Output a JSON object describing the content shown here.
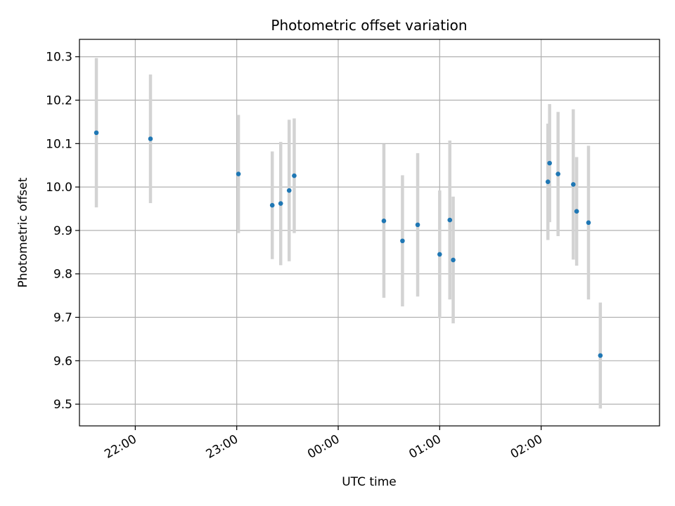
{
  "chart_data": {
    "type": "scatter",
    "title": "Photometric offset variation",
    "xlabel": "UTC time",
    "ylabel": "Photometric offset",
    "grid": true,
    "legend": "none",
    "x_axis_type": "time",
    "xlim": [
      "21:27",
      "03:10"
    ],
    "ylim": [
      9.45,
      10.34
    ],
    "x_ticks": [
      "22:00",
      "23:00",
      "00:00",
      "01:00",
      "02:00"
    ],
    "y_ticks": [
      "9.5",
      "9.6",
      "9.7",
      "9.8",
      "9.9",
      "10.0",
      "10.1",
      "10.2",
      "10.3"
    ],
    "colors": {
      "marker": "#1f77b4",
      "errorbar": "#d3d3d3",
      "grid": "#b0b0b0"
    },
    "series": [
      {
        "points": [
          {
            "x": "21:37",
            "y": 10.125,
            "err": 0.172
          },
          {
            "x": "22:09",
            "y": 10.111,
            "err": 0.148
          },
          {
            "x": "23:01",
            "y": 10.03,
            "err": 0.136
          },
          {
            "x": "23:21",
            "y": 9.958,
            "err": 0.124
          },
          {
            "x": "23:26",
            "y": 9.962,
            "err": 0.142
          },
          {
            "x": "23:31",
            "y": 9.992,
            "err": 0.163
          },
          {
            "x": "23:34",
            "y": 10.026,
            "err": 0.132
          },
          {
            "x": "00:27",
            "y": 9.922,
            "err": 0.177
          },
          {
            "x": "00:38",
            "y": 9.876,
            "err": 0.151
          },
          {
            "x": "00:47",
            "y": 9.913,
            "err": 0.165
          },
          {
            "x": "01:00",
            "y": 9.845,
            "err": 0.147
          },
          {
            "x": "01:06",
            "y": 9.924,
            "err": 0.183
          },
          {
            "x": "01:08",
            "y": 9.832,
            "err": 0.146
          },
          {
            "x": "02:04",
            "y": 10.012,
            "err": 0.134
          },
          {
            "x": "02:05",
            "y": 10.055,
            "err": 0.136
          },
          {
            "x": "02:10",
            "y": 10.03,
            "err": 0.143
          },
          {
            "x": "02:19",
            "y": 10.006,
            "err": 0.173
          },
          {
            "x": "02:21",
            "y": 9.944,
            "err": 0.125
          },
          {
            "x": "02:28",
            "y": 9.918,
            "err": 0.177
          },
          {
            "x": "02:35",
            "y": 9.612,
            "err": 0.122
          }
        ]
      }
    ]
  }
}
